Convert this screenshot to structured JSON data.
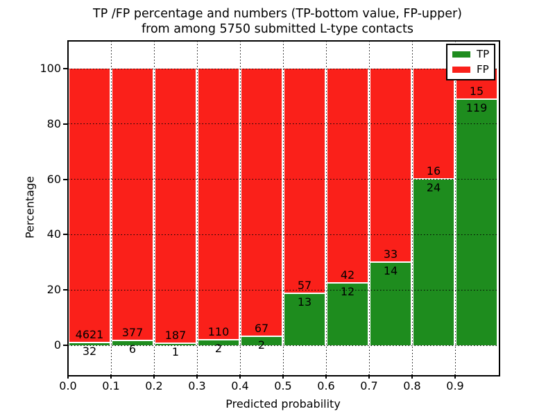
{
  "title": {
    "lines": [
      "TP /FP percentage and numbers (TP-bottom value, FP-upper)",
      "from among 5750 submitted L-type contacts"
    ]
  },
  "chart_data": {
    "type": "bar",
    "subtype": "stacked-normalized-to-100-percent",
    "title": "TP /FP percentage and numbers (TP-bottom value, FP-upper) from among 5750 submitted L-type contacts",
    "xlabel": "Predicted probability",
    "ylabel": "Percentage",
    "x_tick_labels": [
      "0.0",
      "0.1",
      "0.2",
      "0.3",
      "0.4",
      "0.5",
      "0.6",
      "0.7",
      "0.8",
      "0.9"
    ],
    "y_ticks": [
      0,
      20,
      40,
      60,
      80,
      100
    ],
    "xlim": [
      0.0,
      1.0
    ],
    "ylim": [
      -10.5,
      110.5
    ],
    "bin_width": 0.1,
    "grid": "dotted-black",
    "legend_position": "upper-right",
    "total_submitted": 5750,
    "series": [
      {
        "name": "TP",
        "color": "#1e8c1e",
        "counts": [
          32,
          6,
          1,
          2,
          2,
          13,
          12,
          14,
          24,
          119
        ]
      },
      {
        "name": "FP",
        "color": "#fa201a",
        "counts": [
          4621,
          377,
          187,
          110,
          67,
          57,
          42,
          33,
          16,
          15
        ]
      }
    ],
    "tp_percent_per_bin": [
      0.69,
      1.57,
      0.53,
      1.79,
      2.9,
      18.57,
      22.22,
      29.79,
      60.0,
      88.81
    ]
  },
  "colors": {
    "tp_green": "#1e8c1e",
    "fp_red": "#fa201a",
    "grid": "#000000",
    "frame": "#000000",
    "background": "#ffffff"
  }
}
